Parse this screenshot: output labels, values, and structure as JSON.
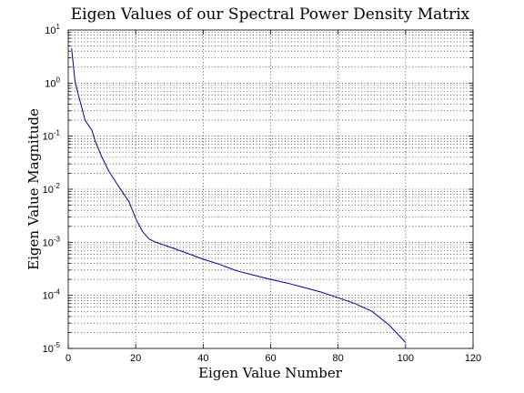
{
  "chart_data": {
    "type": "line",
    "title": "Eigen Values of our Spectral Power Density Matrix",
    "xlabel": "Eigen Value Number",
    "ylabel": "Eigen Value Magnitude",
    "xlim": [
      0,
      120
    ],
    "ylim": [
      1e-05,
      10
    ],
    "yscale": "log",
    "grid": true,
    "xticks": [
      0,
      20,
      40,
      60,
      80,
      100,
      120
    ],
    "yticks": [
      {
        "base": "10",
        "exp": "-5",
        "value": 1e-05
      },
      {
        "base": "10",
        "exp": "-4",
        "value": 0.0001
      },
      {
        "base": "10",
        "exp": "-3",
        "value": 0.001
      },
      {
        "base": "10",
        "exp": "-2",
        "value": 0.01
      },
      {
        "base": "10",
        "exp": "-1",
        "value": 0.1
      },
      {
        "base": "10",
        "exp": "0",
        "value": 1
      },
      {
        "base": "10",
        "exp": "1",
        "value": 10
      }
    ],
    "series": [
      {
        "color": "#00008b",
        "x": [
          1,
          2,
          3,
          4,
          5,
          6,
          7,
          8,
          10,
          12,
          14,
          16,
          18,
          20,
          22,
          24,
          26,
          30,
          35,
          40,
          45,
          50,
          55,
          60,
          65,
          70,
          75,
          80,
          85,
          90,
          95,
          100
        ],
        "y": [
          4.5,
          1.1,
          0.6,
          0.35,
          0.2,
          0.16,
          0.13,
          0.08,
          0.04,
          0.022,
          0.014,
          0.009,
          0.0058,
          0.0028,
          0.0016,
          0.00115,
          0.001,
          0.00082,
          0.00063,
          0.00048,
          0.00038,
          0.00029,
          0.00024,
          0.0002,
          0.00017,
          0.00014,
          0.000115,
          9e-05,
          7e-05,
          5e-05,
          2.8e-05,
          1.3e-05
        ]
      }
    ]
  }
}
